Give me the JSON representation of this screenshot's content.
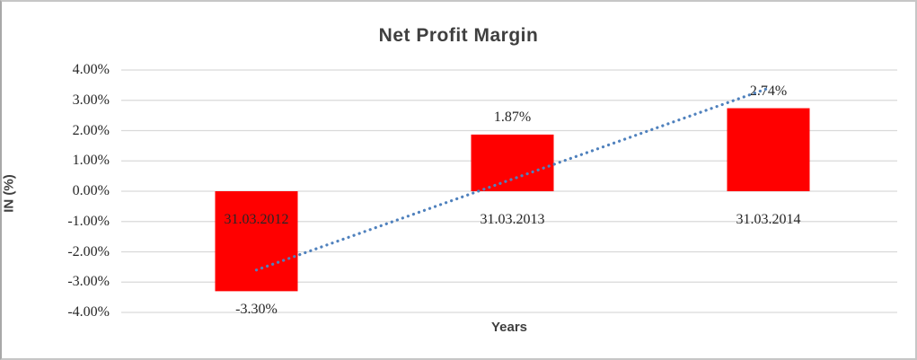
{
  "chart_data": {
    "type": "bar",
    "title": "Net Profit Margin",
    "xlabel": "Years",
    "ylabel": "IN (%)",
    "categories": [
      "31.03.2012",
      "31.03.2013",
      "31.03.2014"
    ],
    "values": [
      -3.3,
      1.87,
      2.74
    ],
    "data_labels": [
      "-3.30%",
      "1.87%",
      "2.74%"
    ],
    "y_ticks": [
      {
        "label": "4.00%",
        "value": 4
      },
      {
        "label": "3.00%",
        "value": 3
      },
      {
        "label": "2.00%",
        "value": 2
      },
      {
        "label": "1.00%",
        "value": 1
      },
      {
        "label": "0.00%",
        "value": 0
      },
      {
        "label": "-1.00%",
        "value": -1
      },
      {
        "label": "-2.00%",
        "value": -2
      },
      {
        "label": "-3.00%",
        "value": -3
      },
      {
        "label": "-4.00%",
        "value": -4
      }
    ],
    "ylim": [
      -4,
      4
    ],
    "grid": true,
    "legend": "none",
    "trendline": {
      "type": "linear",
      "style": "dotted",
      "start_value": -2.6,
      "end_value": 3.4
    },
    "colors": {
      "bar": "#ff0000",
      "trendline": "#4f81bd",
      "gridline": "#d9d9d9",
      "tick_text": "#262626",
      "title_text": "#3f3f3f"
    }
  }
}
